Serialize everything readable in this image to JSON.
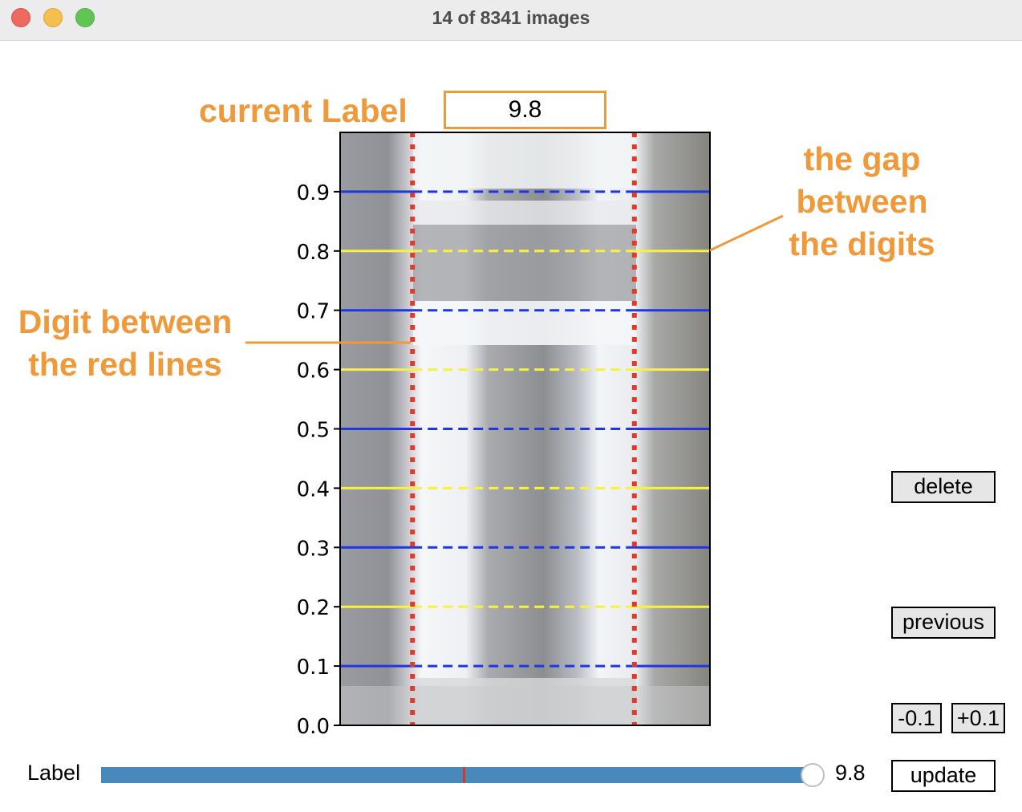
{
  "window": {
    "title": "14 of 8341 images"
  },
  "annotations": {
    "current_label": "current Label",
    "gap": "the gap\nbetween\nthe digits",
    "digit": "Digit between\nthe red lines"
  },
  "current_label_value": "9.8",
  "plot": {
    "yticks": [
      "0.0",
      "0.1",
      "0.2",
      "0.3",
      "0.4",
      "0.5",
      "0.6",
      "0.7",
      "0.8",
      "0.9"
    ],
    "ylim": [
      0,
      1
    ],
    "blue_lines_y": [
      0.1,
      0.3,
      0.5,
      0.7,
      0.9
    ],
    "yellow_lines_y": [
      0.2,
      0.4,
      0.6,
      0.8
    ],
    "red_lines_x_fraction": [
      0.2,
      0.8
    ]
  },
  "buttons": {
    "delete": "delete",
    "previous": "previous",
    "minus": "-0.1",
    "plus": "+0.1",
    "update": "update"
  },
  "slider": {
    "label": "Label",
    "value": "9.8",
    "marker_fraction": 0.51,
    "value_fraction": 1.0
  },
  "colors": {
    "annotation": "#f0993a",
    "blue_line": "#1f35e8",
    "yellow_line": "#f7f23e",
    "red_line": "#e03b2a",
    "slider_track": "#4888bb"
  }
}
